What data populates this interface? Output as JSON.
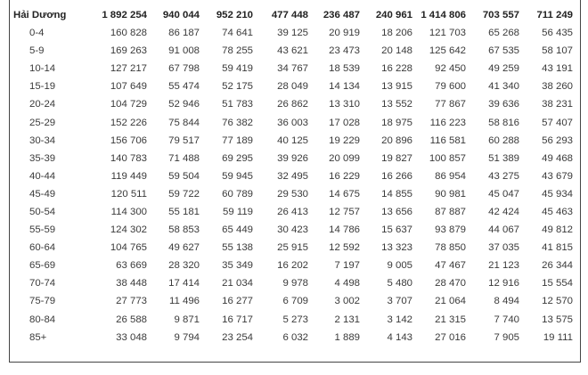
{
  "header": {
    "label": "Hải Dương",
    "values": [
      "1 892 254",
      "940 044",
      "952 210",
      "477 448",
      "236 487",
      "240 961",
      "1 414 806",
      "703 557",
      "711 249"
    ]
  },
  "rows": [
    {
      "label": "0-4",
      "values": [
        "160 828",
        "86 187",
        "74 641",
        "39 125",
        "20 919",
        "18 206",
        "121 703",
        "65 268",
        "56 435"
      ]
    },
    {
      "label": "5-9",
      "values": [
        "169 263",
        "91 008",
        "78 255",
        "43 621",
        "23 473",
        "20 148",
        "125 642",
        "67 535",
        "58 107"
      ]
    },
    {
      "label": "10-14",
      "values": [
        "127 217",
        "67 798",
        "59 419",
        "34 767",
        "18 539",
        "16 228",
        "92 450",
        "49 259",
        "43 191"
      ]
    },
    {
      "label": "15-19",
      "values": [
        "107 649",
        "55 474",
        "52 175",
        "28 049",
        "14 134",
        "13 915",
        "79 600",
        "41 340",
        "38 260"
      ]
    },
    {
      "label": "20-24",
      "values": [
        "104 729",
        "52 946",
        "51 783",
        "26 862",
        "13 310",
        "13 552",
        "77 867",
        "39 636",
        "38 231"
      ]
    },
    {
      "label": "25-29",
      "values": [
        "152 226",
        "75 844",
        "76 382",
        "36 003",
        "17 028",
        "18 975",
        "116 223",
        "58 816",
        "57 407"
      ]
    },
    {
      "label": "30-34",
      "values": [
        "156 706",
        "79 517",
        "77 189",
        "40 125",
        "19 229",
        "20 896",
        "116 581",
        "60 288",
        "56 293"
      ]
    },
    {
      "label": "35-39",
      "values": [
        "140 783",
        "71 488",
        "69 295",
        "39 926",
        "20 099",
        "19 827",
        "100 857",
        "51 389",
        "49 468"
      ]
    },
    {
      "label": "40-44",
      "values": [
        "119 449",
        "59 504",
        "59 945",
        "32 495",
        "16 229",
        "16 266",
        "86 954",
        "43 275",
        "43 679"
      ]
    },
    {
      "label": "45-49",
      "values": [
        "120 511",
        "59 722",
        "60 789",
        "29 530",
        "14 675",
        "14 855",
        "90 981",
        "45 047",
        "45 934"
      ]
    },
    {
      "label": "50-54",
      "values": [
        "114 300",
        "55 181",
        "59 119",
        "26 413",
        "12 757",
        "13 656",
        "87 887",
        "42 424",
        "45 463"
      ]
    },
    {
      "label": "55-59",
      "values": [
        "124 302",
        "58 853",
        "65 449",
        "30 423",
        "14 786",
        "15 637",
        "93 879",
        "44 067",
        "49 812"
      ]
    },
    {
      "label": "60-64",
      "values": [
        "104 765",
        "49 627",
        "55 138",
        "25 915",
        "12 592",
        "13 323",
        "78 850",
        "37 035",
        "41 815"
      ]
    },
    {
      "label": "65-69",
      "values": [
        "63 669",
        "28 320",
        "35 349",
        "16 202",
        "7 197",
        "9 005",
        "47 467",
        "21 123",
        "26 344"
      ]
    },
    {
      "label": "70-74",
      "values": [
        "38 448",
        "17 414",
        "21 034",
        "9 978",
        "4 498",
        "5 480",
        "28 470",
        "12 916",
        "15 554"
      ]
    },
    {
      "label": "75-79",
      "values": [
        "27 773",
        "11 496",
        "16 277",
        "6 709",
        "3 002",
        "3 707",
        "21 064",
        "8 494",
        "12 570"
      ]
    },
    {
      "label": "80-84",
      "values": [
        "26 588",
        "9 871",
        "16 717",
        "5 273",
        "2 131",
        "3 142",
        "21 315",
        "7 740",
        "13 575"
      ]
    },
    {
      "label": "85+",
      "values": [
        "33 048",
        "9 794",
        "23 254",
        "6 032",
        "1 889",
        "4 143",
        "27 016",
        "7 905",
        "19 111"
      ]
    }
  ]
}
